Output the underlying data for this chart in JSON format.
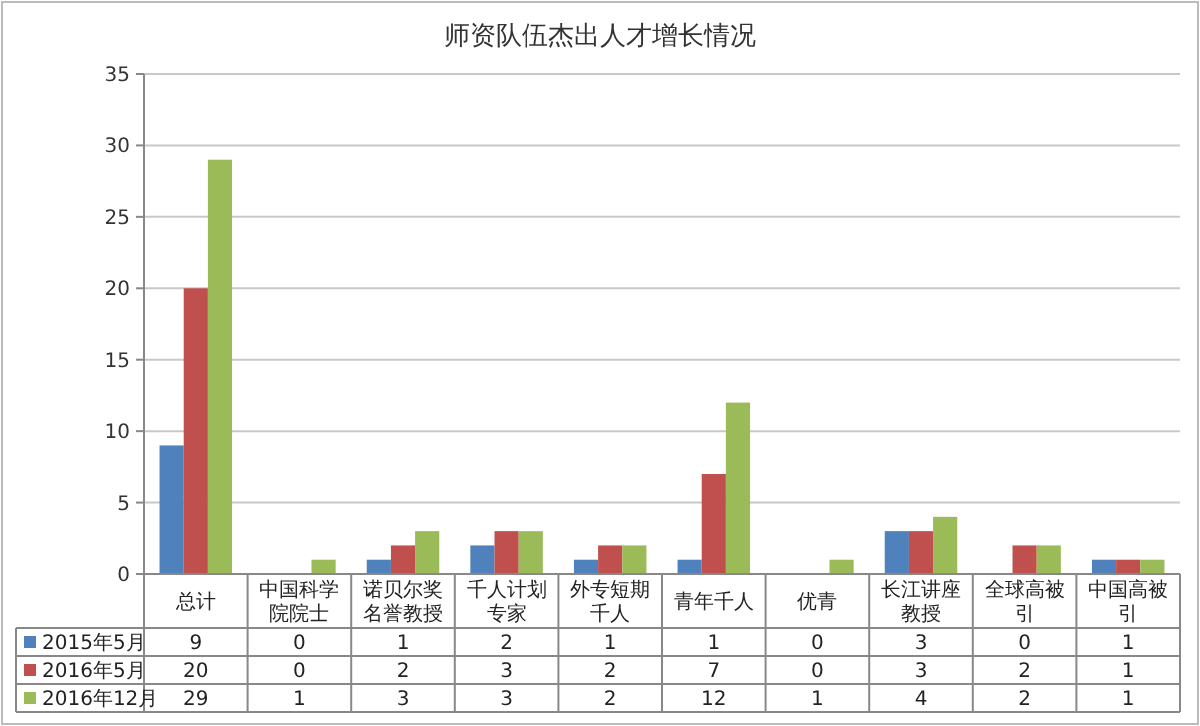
{
  "chart_data": {
    "type": "bar",
    "title": "师资队伍杰出人才增长情况",
    "categories": [
      "总计",
      "中国科学院院士",
      "诺贝尔奖名誉教授",
      "千人计划专家",
      "外专短期千人",
      "青年千人",
      "优青",
      "长江讲座教授",
      "全球高被引",
      "中国高被引"
    ],
    "series": [
      {
        "name": "2015年5月",
        "color": "#4f81bd",
        "values": [
          9,
          0,
          1,
          2,
          1,
          1,
          0,
          3,
          0,
          1
        ]
      },
      {
        "name": "2016年5月",
        "color": "#c0504d",
        "values": [
          20,
          0,
          2,
          3,
          2,
          7,
          0,
          3,
          2,
          1
        ]
      },
      {
        "name": "2016年12月",
        "color": "#9bbb59",
        "values": [
          29,
          1,
          3,
          3,
          2,
          12,
          1,
          4,
          2,
          1
        ]
      }
    ],
    "ylim": [
      0,
      35
    ],
    "yticks": [
      0,
      5,
      10,
      15,
      20,
      25,
      30,
      35
    ],
    "grid": "y",
    "legend": "bottom",
    "data_labels": true
  }
}
